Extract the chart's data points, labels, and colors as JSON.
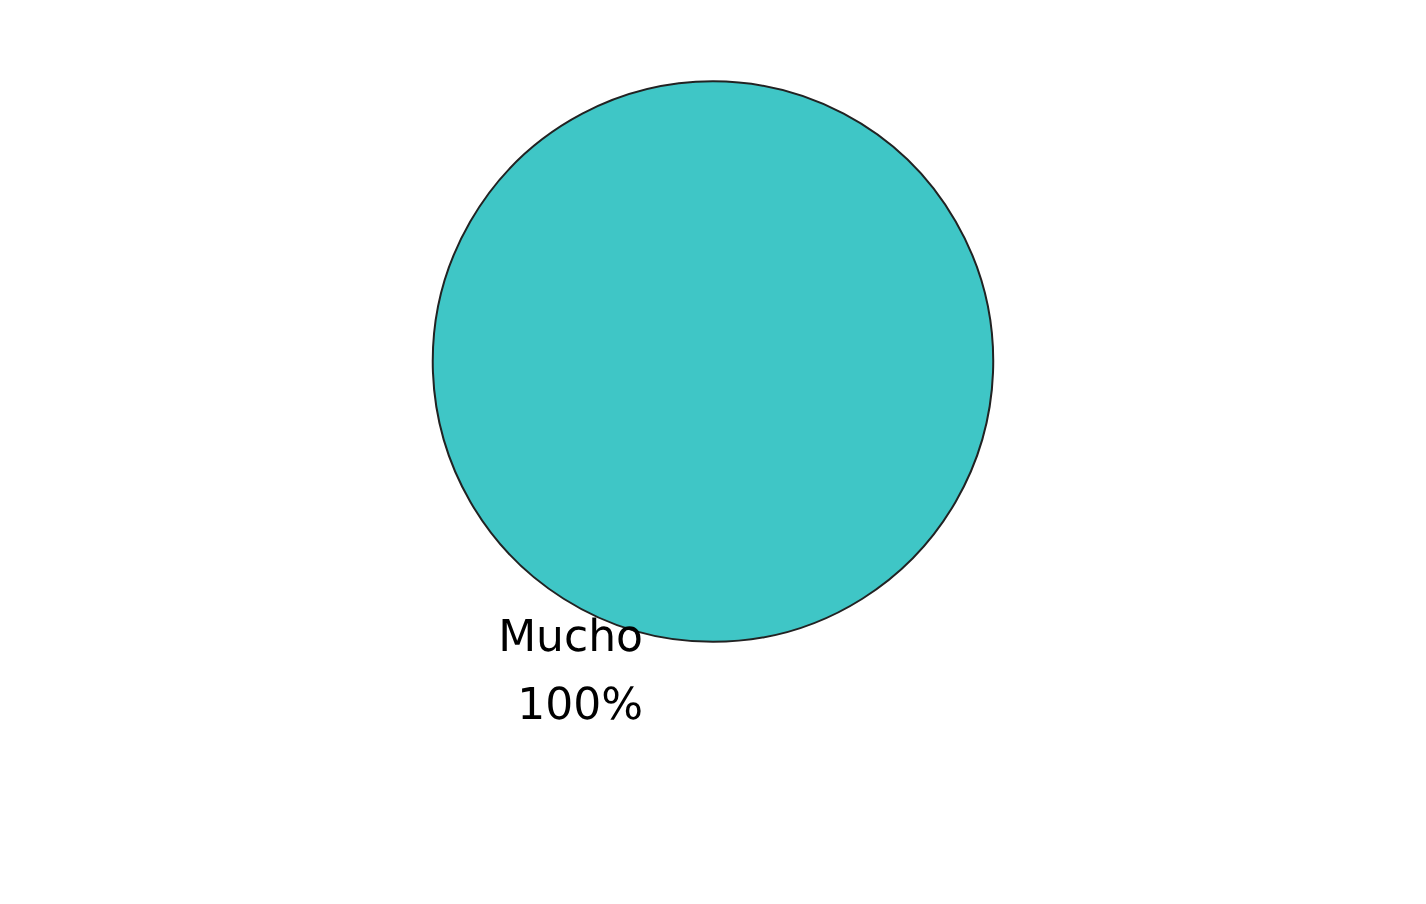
{
  "chart_data": {
    "type": "pie",
    "categories": [
      "Mucho"
    ],
    "values": [
      100
    ],
    "colors": [
      "#3fc6c6"
    ],
    "value_labels": [
      "100%"
    ],
    "legend": false
  }
}
